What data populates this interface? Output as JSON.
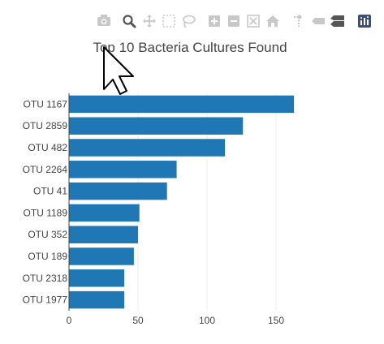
{
  "colors": {
    "bar": "#1f77b4",
    "grid": "#eeeeee",
    "axis": "#444444",
    "modebar_icon": "#c8c8c8",
    "modebar_active": "#555555",
    "logo": "#3f4f75"
  },
  "modebar": {
    "icons": [
      "camera-icon",
      "zoom-icon",
      "pan-icon",
      "box-select-icon",
      "lasso-select-icon",
      "zoom-in-icon",
      "zoom-out-icon",
      "autoscale-icon",
      "reset-axes-icon",
      "spike-lines-icon",
      "hover-closest-icon",
      "hover-compare-icon",
      "plotly-logo-icon"
    ]
  },
  "chart_data": {
    "type": "bar",
    "orientation": "horizontal",
    "title": "Top 10 Bacteria Cultures Found",
    "categories": [
      "OTU 1167",
      "OTU 2859",
      "OTU 482",
      "OTU 2264",
      "OTU 41",
      "OTU 1189",
      "OTU 352",
      "OTU 189",
      "OTU 2318",
      "OTU 1977"
    ],
    "values": [
      163,
      126,
      113,
      78,
      71,
      51,
      50,
      47,
      40,
      40
    ],
    "xlim": [
      0,
      170
    ],
    "xticks": [
      0,
      50,
      100,
      150
    ],
    "grid": true,
    "legend": false
  }
}
